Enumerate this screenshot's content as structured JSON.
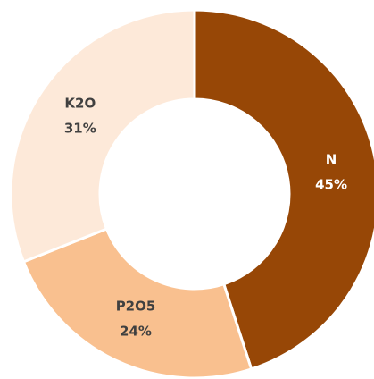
{
  "chart_data": {
    "type": "donut",
    "categories": [
      "N",
      "P2O5",
      "K2O"
    ],
    "values": [
      45,
      24,
      31
    ],
    "value_labels": [
      "45%",
      "24%",
      "31%"
    ],
    "colors": [
      "#974706",
      "#f9c08f",
      "#fde9d9"
    ],
    "label_colors": [
      "#ffffff",
      "#404040",
      "#404040"
    ]
  }
}
